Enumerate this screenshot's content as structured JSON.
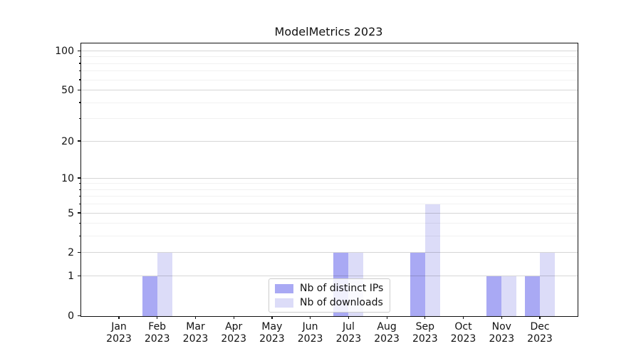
{
  "chart_data": {
    "type": "bar",
    "title": "ModelMetrics 2023",
    "x": [
      "Jan 2023",
      "Feb 2023",
      "Mar 2023",
      "Apr 2023",
      "May 2023",
      "Jun 2023",
      "Jul 2023",
      "Aug 2023",
      "Sep 2023",
      "Oct 2023",
      "Nov 2023",
      "Dec 2023"
    ],
    "series": [
      {
        "name": "Nb of distinct IPs",
        "color": "#a9a9f4",
        "values": [
          0,
          1,
          0,
          0,
          0,
          0,
          2,
          0,
          2,
          0,
          1,
          1
        ]
      },
      {
        "name": "Nb of downloads",
        "color": "#dcdcf8",
        "values": [
          0,
          2,
          0,
          0,
          0,
          0,
          2,
          0,
          6,
          0,
          1,
          2
        ]
      }
    ],
    "y_scale": "log1p",
    "y_axis": {
      "major_ticks": [
        {
          "label": "0",
          "value": 0
        },
        {
          "label": "1",
          "value": 1
        },
        {
          "label": "2",
          "value": 2
        },
        {
          "label": "5",
          "value": 5
        },
        {
          "label": "10",
          "value": 10
        },
        {
          "label": "20",
          "value": 20
        },
        {
          "label": "50",
          "value": 50
        },
        {
          "label": "100",
          "value": 100
        }
      ],
      "minor_ticks": [
        3,
        4,
        6,
        7,
        8,
        9,
        30,
        40,
        60,
        70,
        80,
        90
      ],
      "ylim": [
        0,
        113
      ]
    },
    "grid": "horizontal",
    "legend_position": "lower-center",
    "colors": {
      "background": "#ffffff",
      "spine": "#111111",
      "grid_major": "#cccccc",
      "grid_minor": "#efefef"
    }
  }
}
